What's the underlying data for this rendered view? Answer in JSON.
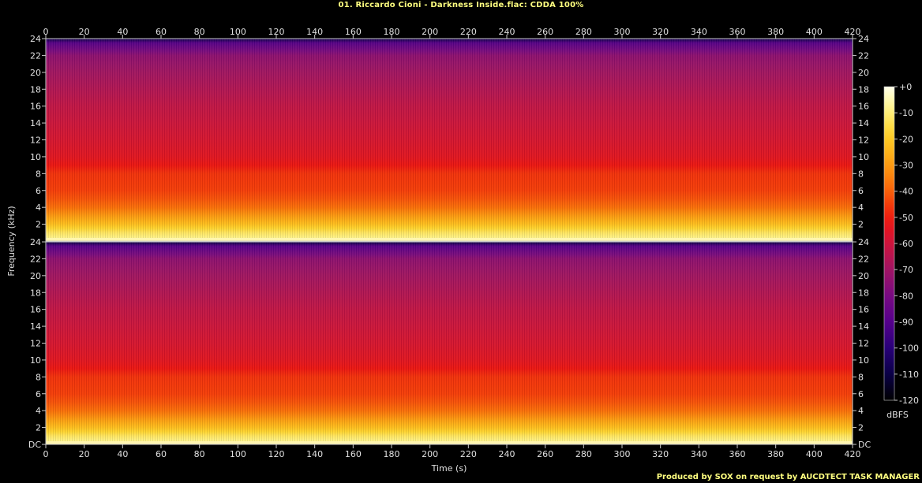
{
  "title": "01. Riccardo Cioni - Darkness Inside.flac: CDDA 100%",
  "footer": "Produced by SOX on request by AUCDTECT TASK MANAGER",
  "chart_data": {
    "type": "heatmap",
    "title": "01. Riccardo Cioni - Darkness Inside.flac: CDDA 100%",
    "xlabel": "Time (s)",
    "ylabel": "Frequency (kHz)",
    "colorbar_label": "dBFS",
    "xlim": [
      0,
      420
    ],
    "ylim": [
      0,
      24
    ],
    "clim": [
      -120,
      0
    ],
    "channels": 2,
    "x_ticks": [
      "0",
      "20",
      "40",
      "60",
      "80",
      "100",
      "120",
      "140",
      "160",
      "180",
      "200",
      "220",
      "240",
      "260",
      "280",
      "300",
      "320",
      "340",
      "360",
      "380",
      "400",
      "420"
    ],
    "y_ticks_top": [
      "2",
      "4",
      "6",
      "8",
      "10",
      "12",
      "14",
      "16",
      "18",
      "20",
      "22",
      "24"
    ],
    "y_ticks_bottom": [
      "DC",
      "2",
      "4",
      "6",
      "8",
      "10",
      "12",
      "14",
      "16",
      "18",
      "20",
      "22",
      "24"
    ],
    "colorbar_ticks": [
      "+0",
      "-10",
      "-20",
      "-30",
      "-40",
      "-50",
      "-60",
      "-70",
      "-80",
      "-90",
      "-100",
      "-110",
      "-120"
    ],
    "approx_level_by_frequency": {
      "freq_khz": [
        0,
        1,
        2,
        3,
        4,
        5,
        6,
        8,
        9,
        10,
        12,
        16,
        20,
        22,
        23.5
      ],
      "dbfs": [
        -5,
        -12,
        -22,
        -30,
        -38,
        -42,
        -45,
        -47,
        -52,
        -55,
        -58,
        -63,
        -70,
        -75,
        -90
      ]
    }
  }
}
